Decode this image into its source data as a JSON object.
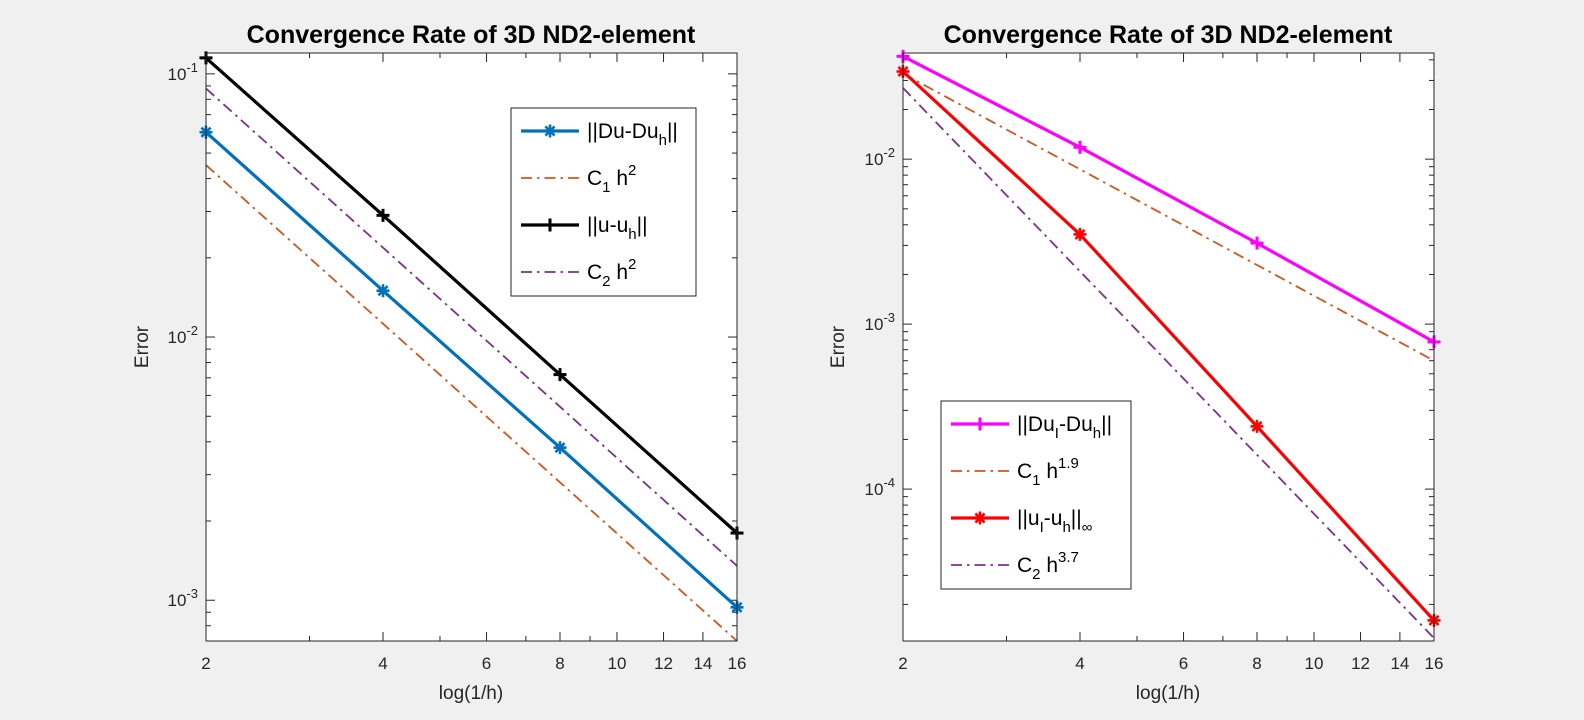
{
  "chart_data": [
    {
      "type": "line",
      "title": "Convergence Rate of 3D ND2-element",
      "xlabel": "log(1/h)",
      "ylabel": "Error",
      "xscale": "log",
      "yscale": "log",
      "xlim": [
        2,
        16
      ],
      "ylim": [
        0.0007,
        0.12
      ],
      "x_ticks": [
        2,
        4,
        6,
        8,
        10,
        12,
        14,
        16
      ],
      "y_ticks": [
        {
          "value": 0.001,
          "base": "10",
          "exp": "-3"
        },
        {
          "value": 0.01,
          "base": "10",
          "exp": "-2"
        },
        {
          "value": 0.1,
          "base": "10",
          "exp": "-1"
        }
      ],
      "legend_position": "top-right",
      "grid": false,
      "series": [
        {
          "name": {
            "t1": "||Du-Du",
            "s1": "h",
            "t2": "||"
          },
          "color": "#0072BD",
          "style": "solid",
          "width": 3.2,
          "marker": "asterisk",
          "x": [
            2,
            4,
            8,
            16
          ],
          "values": [
            0.06,
            0.015,
            0.0038,
            0.00094
          ]
        },
        {
          "name": {
            "t1": "C",
            "s1": "1",
            "t2": " h",
            "p1": "2"
          },
          "color": "#D95319",
          "style": "dashdot",
          "width": 1.8,
          "marker": "none",
          "x": [
            2,
            16
          ],
          "values": [
            0.045,
            0.0007
          ]
        },
        {
          "name": {
            "t1": "||u-u",
            "s1": "h",
            "t2": "||"
          },
          "color": "#000000",
          "style": "solid",
          "width": 3.2,
          "marker": "plus",
          "x": [
            2,
            4,
            8,
            16
          ],
          "values": [
            0.115,
            0.029,
            0.0072,
            0.0018
          ]
        },
        {
          "name": {
            "t1": "C",
            "s1": "2",
            "t2": " h",
            "p1": "2"
          },
          "color": "#7E2F8E",
          "style": "dashdot",
          "width": 1.8,
          "marker": "none",
          "x": [
            2,
            16
          ],
          "values": [
            0.088,
            0.00135
          ]
        }
      ]
    },
    {
      "type": "line",
      "title": "Convergence Rate of 3D ND2-element",
      "xlabel": "log(1/h)",
      "ylabel": "Error",
      "xscale": "log",
      "yscale": "log",
      "xlim": [
        2,
        16
      ],
      "ylim": [
        1.2e-05,
        0.044
      ],
      "x_ticks": [
        2,
        4,
        6,
        8,
        10,
        12,
        14,
        16
      ],
      "y_ticks": [
        {
          "value": 0.0001,
          "base": "10",
          "exp": "-4"
        },
        {
          "value": 0.001,
          "base": "10",
          "exp": "-3"
        },
        {
          "value": 0.01,
          "base": "10",
          "exp": "-2"
        }
      ],
      "legend_position": "bottom-left",
      "grid": false,
      "series": [
        {
          "name": {
            "t1": "||Du",
            "s1": "I",
            "t2": "-Du",
            "s2": "h",
            "t3": "||"
          },
          "color": "#FF00FF",
          "style": "solid",
          "width": 3.2,
          "marker": "plus",
          "x": [
            2,
            4,
            8,
            16
          ],
          "values": [
            0.042,
            0.0118,
            0.0031,
            0.00078
          ]
        },
        {
          "name": {
            "t1": "C",
            "s1": "1",
            "t2": " h",
            "p1": "1.9"
          },
          "color": "#D95319",
          "style": "dashdot",
          "width": 1.8,
          "marker": "none",
          "x": [
            2,
            16
          ],
          "values": [
            0.033,
            0.0006
          ]
        },
        {
          "name": {
            "t1": "||u",
            "s1": "I",
            "t2": "-u",
            "s2": "h",
            "t3": "||",
            "s3": "∞"
          },
          "color": "#FF0000",
          "style": "solid",
          "width": 3.2,
          "marker": "asterisk",
          "x": [
            2,
            4,
            8,
            16
          ],
          "values": [
            0.034,
            0.0035,
            0.00024,
            1.6e-05
          ]
        },
        {
          "name": {
            "t1": "C",
            "s1": "2",
            "t2": " h",
            "p1": "3.7"
          },
          "color": "#7E2F8E",
          "style": "dashdot",
          "width": 1.8,
          "marker": "none",
          "x": [
            2,
            16
          ],
          "values": [
            0.027,
            1.25e-05
          ]
        }
      ]
    }
  ]
}
